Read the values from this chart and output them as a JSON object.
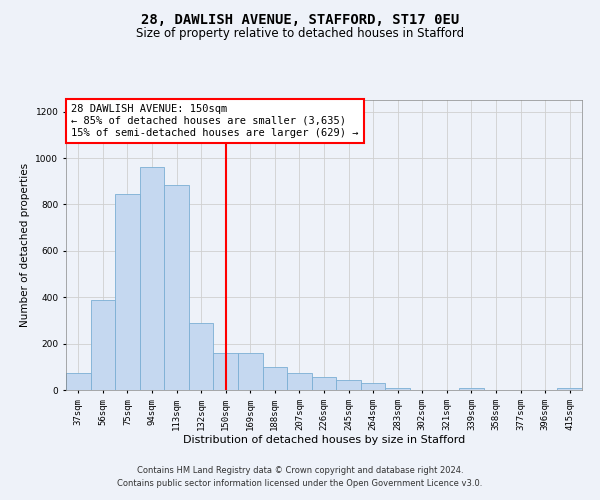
{
  "title": "28, DAWLISH AVENUE, STAFFORD, ST17 0EU",
  "subtitle": "Size of property relative to detached houses in Stafford",
  "xlabel": "Distribution of detached houses by size in Stafford",
  "ylabel": "Number of detached properties",
  "footer1": "Contains HM Land Registry data © Crown copyright and database right 2024.",
  "footer2": "Contains public sector information licensed under the Open Government Licence v3.0.",
  "property_label": "28 DAWLISH AVENUE: 150sqm",
  "annotation_line1": "← 85% of detached houses are smaller (3,635)",
  "annotation_line2": "15% of semi-detached houses are larger (629) →",
  "categories": [
    "37sqm",
    "56sqm",
    "75sqm",
    "94sqm",
    "113sqm",
    "132sqm",
    "150sqm",
    "169sqm",
    "188sqm",
    "207sqm",
    "226sqm",
    "245sqm",
    "264sqm",
    "283sqm",
    "302sqm",
    "321sqm",
    "339sqm",
    "358sqm",
    "377sqm",
    "396sqm",
    "415sqm"
  ],
  "values": [
    75,
    390,
    845,
    960,
    885,
    290,
    160,
    160,
    100,
    75,
    55,
    45,
    30,
    10,
    0,
    0,
    10,
    0,
    0,
    0,
    10
  ],
  "bar_color": "#c5d8f0",
  "bar_edge_color": "#7bafd4",
  "marker_color": "red",
  "grid_color": "#d0d0d0",
  "bg_color": "#eef2f9",
  "ylim": [
    0,
    1250
  ],
  "yticks": [
    0,
    200,
    400,
    600,
    800,
    1000,
    1200
  ],
  "annotation_box_color": "white",
  "annotation_box_edge": "red",
  "title_fontsize": 10,
  "subtitle_fontsize": 8.5,
  "xlabel_fontsize": 8,
  "ylabel_fontsize": 7.5,
  "tick_fontsize": 6.5,
  "footer_fontsize": 6,
  "annot_fontsize": 7.5
}
